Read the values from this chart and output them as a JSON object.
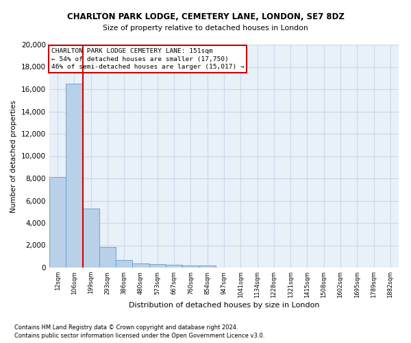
{
  "title": "CHARLTON PARK LODGE, CEMETERY LANE, LONDON, SE7 8DZ",
  "subtitle": "Size of property relative to detached houses in London",
  "xlabel": "Distribution of detached houses by size in London",
  "ylabel": "Number of detached properties",
  "footnote1": "Contains HM Land Registry data © Crown copyright and database right 2024.",
  "footnote2": "Contains public sector information licensed under the Open Government Licence v3.0.",
  "categories": [
    "12sqm",
    "106sqm",
    "199sqm",
    "293sqm",
    "386sqm",
    "480sqm",
    "573sqm",
    "667sqm",
    "760sqm",
    "854sqm",
    "947sqm",
    "1041sqm",
    "1134sqm",
    "1228sqm",
    "1321sqm",
    "1415sqm",
    "1508sqm",
    "1602sqm",
    "1695sqm",
    "1789sqm",
    "1882sqm"
  ],
  "bar_heights": [
    8100,
    16500,
    5300,
    1850,
    700,
    380,
    280,
    220,
    210,
    180,
    0,
    0,
    0,
    0,
    0,
    0,
    0,
    0,
    0,
    0,
    0
  ],
  "bar_color": "#b8d0e8",
  "bar_edge_color": "#6699cc",
  "grid_color": "#c8d8ea",
  "background_color": "#e8f0f8",
  "vline_x": 1.53,
  "vline_color": "#cc0000",
  "annotation_text": "CHARLTON PARK LODGE CEMETERY LANE: 151sqm\n← 54% of detached houses are smaller (17,750)\n46% of semi-detached houses are larger (15,017) →",
  "annotation_box_color": "white",
  "annotation_box_edge": "#cc0000",
  "ylim": [
    0,
    20000
  ],
  "yticks": [
    0,
    2000,
    4000,
    6000,
    8000,
    10000,
    12000,
    14000,
    16000,
    18000,
    20000
  ]
}
